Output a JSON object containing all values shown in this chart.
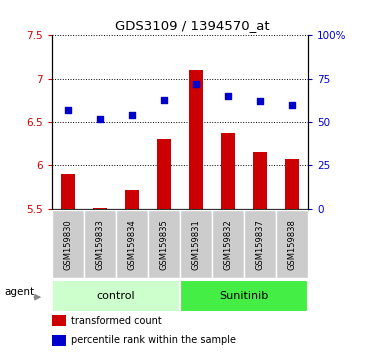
{
  "title": "GDS3109 / 1394570_at",
  "categories": [
    "GSM159830",
    "GSM159833",
    "GSM159834",
    "GSM159835",
    "GSM159831",
    "GSM159832",
    "GSM159837",
    "GSM159838"
  ],
  "red_values": [
    5.9,
    5.51,
    5.72,
    6.3,
    7.1,
    6.37,
    6.16,
    6.07
  ],
  "blue_values": [
    57,
    52,
    54,
    63,
    72,
    65,
    62,
    60
  ],
  "ylim_left": [
    5.5,
    7.5
  ],
  "ylim_right": [
    0,
    100
  ],
  "yticks_left": [
    5.5,
    6.0,
    6.5,
    7.0,
    7.5
  ],
  "yticks_right": [
    0,
    25,
    50,
    75,
    100
  ],
  "ytick_labels_right": [
    "0",
    "25",
    "50",
    "75",
    "100%"
  ],
  "ytick_labels_left": [
    "5.5",
    "6",
    "6.5",
    "7",
    "7.5"
  ],
  "bar_color": "#cc0000",
  "dot_color": "#0000cc",
  "bar_bottom": 5.5,
  "agent_label": "agent",
  "legend_red": "transformed count",
  "legend_blue": "percentile rank within the sample",
  "tick_color_left": "#cc0000",
  "tick_color_right": "#0000cc",
  "group_label_bg_control": "#ccffcc",
  "group_label_bg_sunitinib": "#44ee44",
  "label_bg_gray": "#cccccc",
  "bar_width": 0.45
}
